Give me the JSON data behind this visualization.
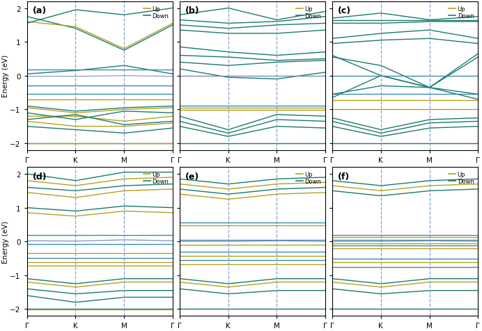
{
  "panels": [
    "(a)",
    "(b)",
    "(c)",
    "(d)",
    "(e)",
    "(f)"
  ],
  "ylabel": "Energy (eV)",
  "ylim": [
    -2.2,
    2.2
  ],
  "yticks": [
    -2,
    -1,
    0,
    1,
    2
  ],
  "xtick_labels": [
    "Γ",
    "K",
    "M",
    "Γ"
  ],
  "color_up": "#b5a020",
  "color_down": "#1a7a6e",
  "color_flat_blue": "#3a8ab0",
  "color_dashed_vline": "#7090c0",
  "color_fermi_dashed": "#8090c0",
  "legend_up_color": "#b5a020",
  "legend_down_color": "#1a7a6e"
}
